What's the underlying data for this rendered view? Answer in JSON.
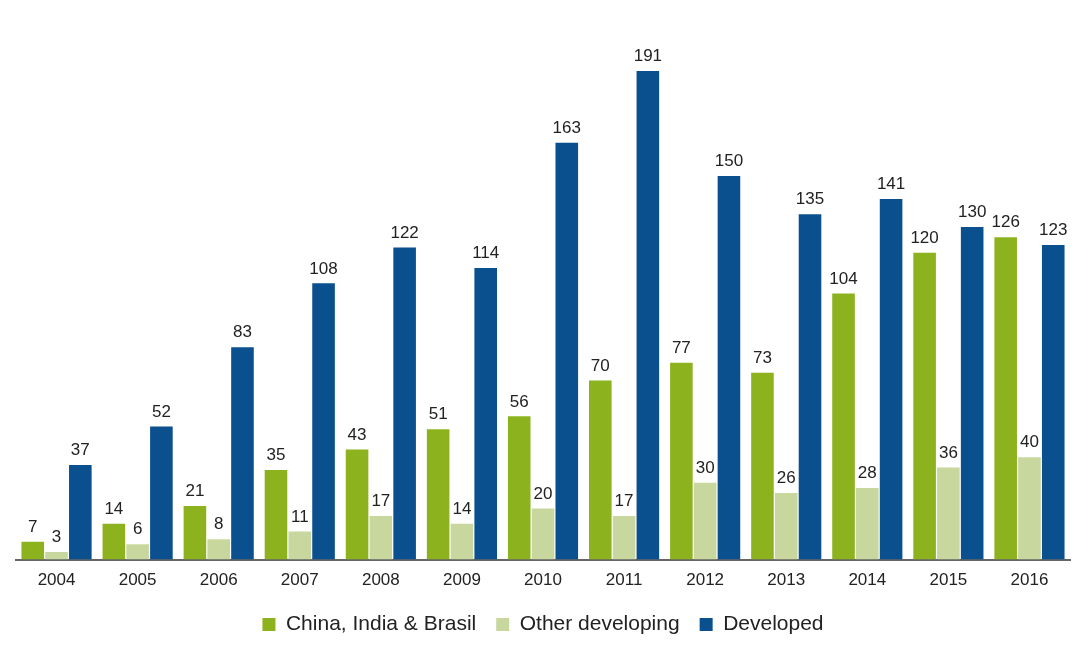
{
  "chart_data": {
    "type": "bar",
    "categories": [
      "2004",
      "2005",
      "2006",
      "2007",
      "2008",
      "2009",
      "2010",
      "2011",
      "2012",
      "2013",
      "2014",
      "2015",
      "2016"
    ],
    "series": [
      {
        "name": "China, India & Brasil",
        "color": "#8cb31e",
        "values": [
          7,
          14,
          21,
          35,
          43,
          51,
          56,
          70,
          77,
          73,
          104,
          120,
          126
        ]
      },
      {
        "name": "Other developing",
        "color": "#c8d79e",
        "values": [
          3,
          6,
          8,
          11,
          17,
          14,
          20,
          17,
          30,
          26,
          28,
          36,
          40
        ]
      },
      {
        "name": "Developed",
        "color": "#0a4f8e",
        "values": [
          37,
          52,
          83,
          108,
          122,
          114,
          163,
          191,
          150,
          135,
          141,
          130,
          123
        ]
      }
    ],
    "data_labels": true,
    "legend": "bottom",
    "grid": false
  }
}
